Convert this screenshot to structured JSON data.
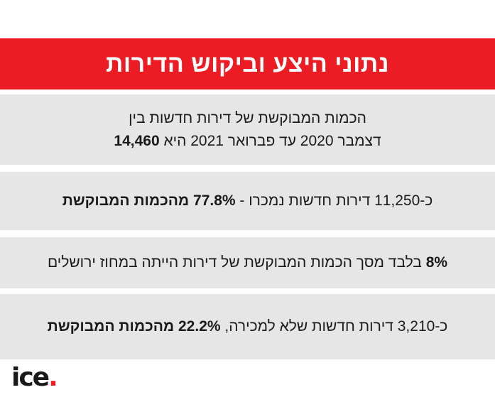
{
  "title": "נתוני היצע וביקוש הדירות",
  "stat_1": {
    "line1": "הכמות המבוקשת של דירות חדשות בין",
    "line2_text": "דצמבר 2020 עד פברואר 2021 היא ",
    "line2_bold": "14,460"
  },
  "stat_2": {
    "text": "כ-11,250 דירות חדשות נמכרו - ",
    "bold": "77.8% מהכמות המבוקשת"
  },
  "stat_3": {
    "bold": "8%",
    "text": " בלבד מסך הכמות המבוקשת של דירות הייתה במחוז ירושלים"
  },
  "stat_4": {
    "text": "כ-3,210 דירות חדשות שלא למכירה, ",
    "bold": "22.2% מהכמות המבוקשת"
  },
  "logo": {
    "text": "ice",
    "dot": "."
  },
  "colors": {
    "accent": "#ec1c24",
    "panel": "#e6e6e6",
    "text": "#1a1a1a"
  }
}
